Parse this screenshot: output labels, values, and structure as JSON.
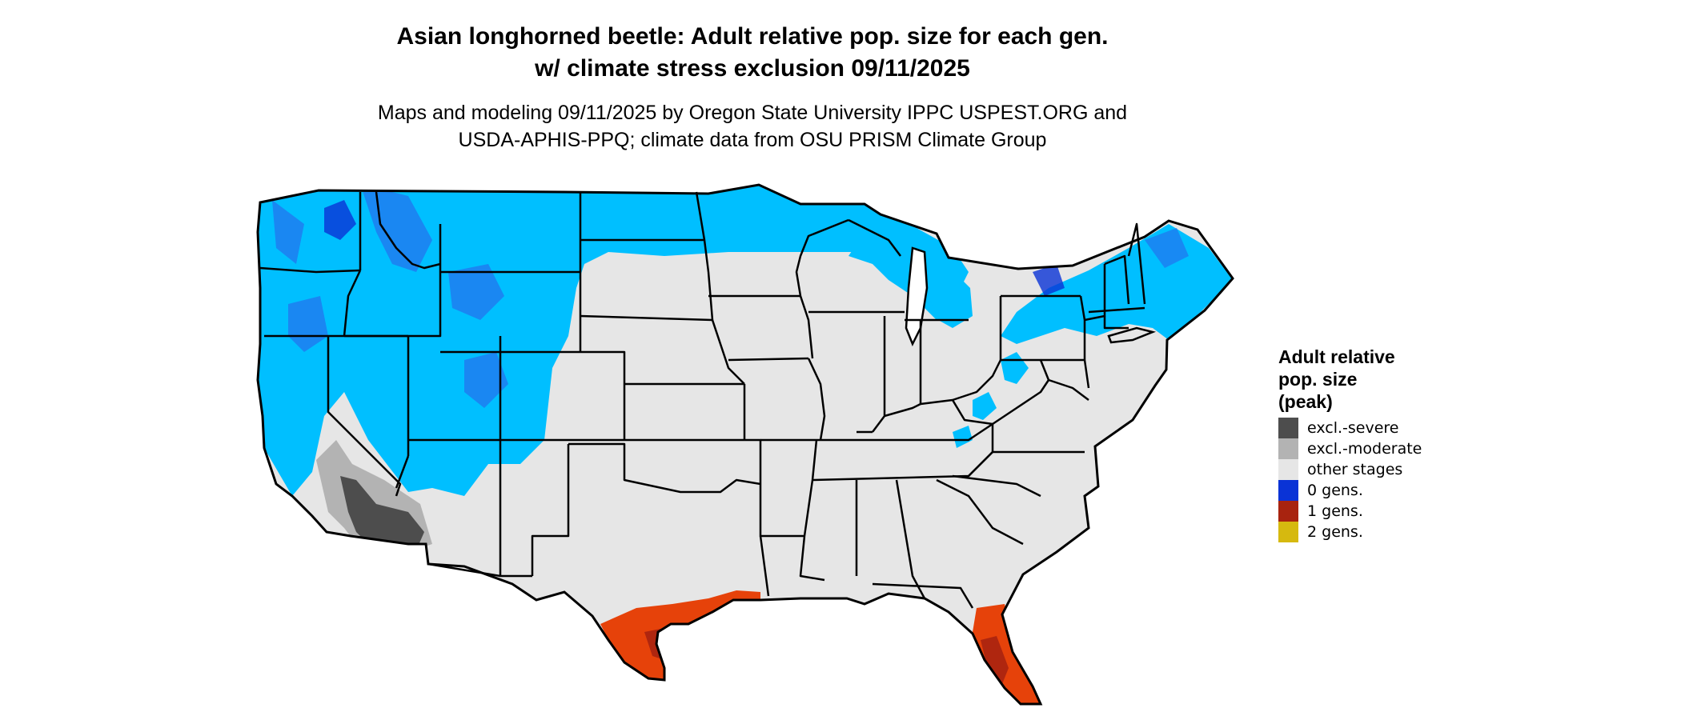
{
  "title": {
    "line1": "Asian longhorned beetle: Adult relative pop. size for each gen.",
    "line2": "w/ climate stress exclusion 09/11/2025"
  },
  "subtitle": {
    "line1": "Maps and modeling 09/11/2025 by Oregon State University IPPC USPEST.ORG and",
    "line2": "USDA-APHIS-PPQ; climate data from OSU PRISM Climate Group"
  },
  "legend": {
    "title_lines": [
      "Adult relative",
      "pop. size",
      "(peak)"
    ],
    "items": [
      {
        "label": "excl.-severe",
        "color": "#4d4d4d"
      },
      {
        "label": "excl.-moderate",
        "color": "#b3b3b3"
      },
      {
        "label": "other stages",
        "color": "#e6e6e6"
      },
      {
        "label": "0 gens.",
        "color": "#0a33d6"
      },
      {
        "label": "1 gens.",
        "color": "#a8230f"
      },
      {
        "label": "2 gens.",
        "color": "#d6b90f"
      }
    ]
  },
  "colors": {
    "land": "#e6e6e6",
    "light_blue": "#00bfff",
    "mid_blue": "#1e7cf0",
    "dark_blue": "#0a33d6",
    "orange": "#e6420a",
    "dark_red": "#a8230f",
    "dark_gray": "#4d4d4d",
    "mid_gray": "#b3b3b3",
    "border": "#000000"
  }
}
